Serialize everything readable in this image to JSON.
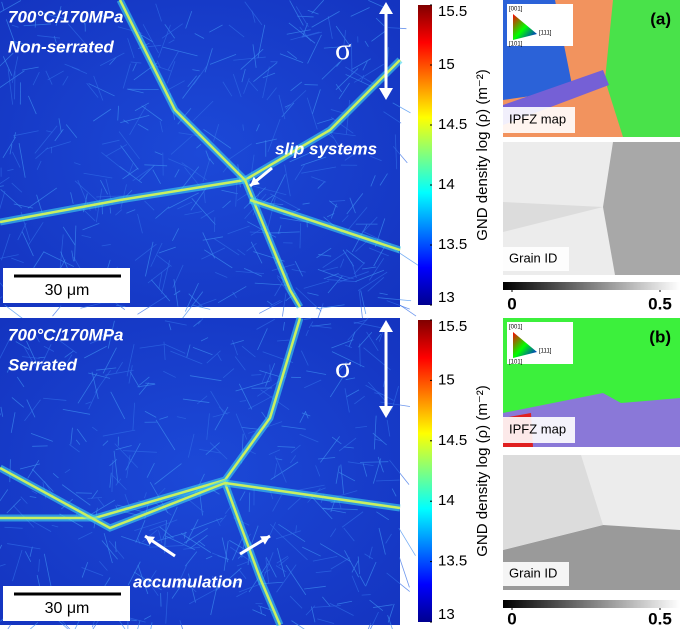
{
  "colorbar": {
    "title": "GND density log (ρ) (m⁻²)",
    "range": [
      13,
      15.5
    ],
    "ticks": [
      13,
      13.5,
      14,
      14.5,
      15,
      15.5
    ]
  },
  "grain_scale": {
    "range": [
      0,
      0.5
    ],
    "ticks": [
      0,
      0.5
    ]
  },
  "panels": [
    {
      "label": "(a)",
      "temperature_stress": "700°C/170MPa",
      "condition": "Non-serrated",
      "stress_symbol": "σ",
      "annotation": "slip systems",
      "scale_bar": "30 μm",
      "ipf_legend": [
        "[001]",
        "[111]",
        "[101]"
      ],
      "ipfz_label": "IPFZ map",
      "grain_label": "Grain ID"
    },
    {
      "label": "(b)",
      "temperature_stress": "700°C/170MPa",
      "condition": "Serrated",
      "stress_symbol": "σ",
      "annotation": "accumulation",
      "scale_bar": "30 μm",
      "ipf_legend": [
        "[001]",
        "[111]",
        "[101]"
      ],
      "ipfz_label": "IPFZ map",
      "grain_label": "Grain ID"
    }
  ]
}
